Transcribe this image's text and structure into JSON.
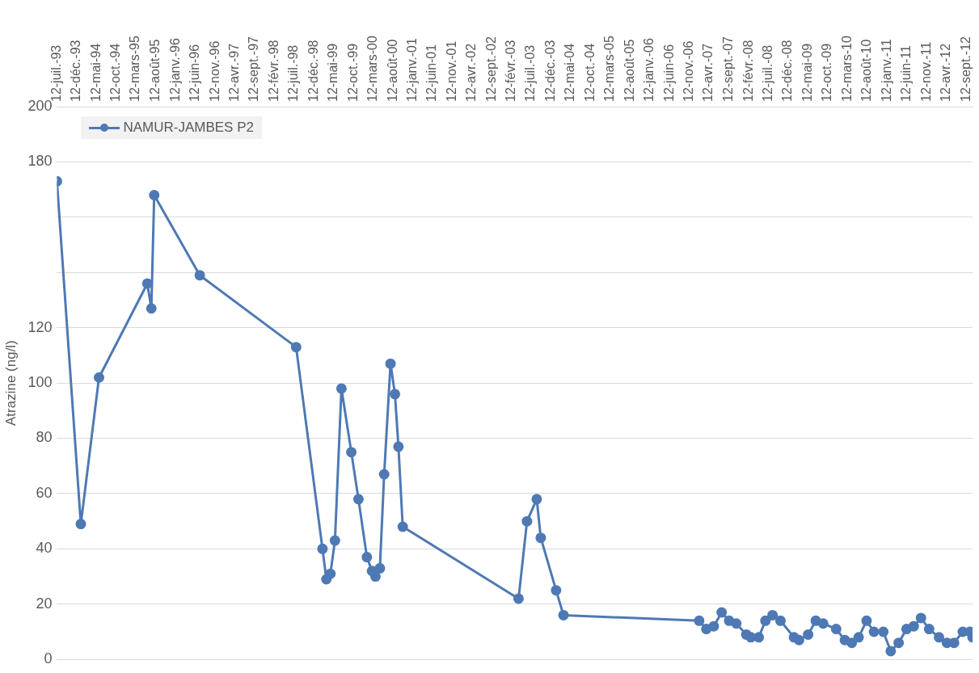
{
  "chart_data": {
    "type": "line",
    "ylabel": "Atrazine (ng/l)",
    "x": [
      "1993-07-12",
      "1994-01-12",
      "1994-06-01",
      "1995-06-08",
      "1995-07-09",
      "1995-07-31",
      "1996-07-16",
      "1998-07-28",
      "1999-02-16",
      "1999-03-18",
      "1999-04-18",
      "1999-05-23",
      "1999-07-12",
      "1999-09-26",
      "1999-11-20",
      "2000-01-24",
      "2000-03-03",
      "2000-03-30",
      "2000-05-03",
      "2000-06-05",
      "2000-07-24",
      "2000-08-27",
      "2000-09-23",
      "2000-10-26",
      "2003-04-06",
      "2003-06-10",
      "2003-08-24",
      "2003-09-24",
      "2004-01-20",
      "2004-03-17",
      "2007-01-26",
      "2007-03-22",
      "2007-05-18",
      "2007-07-18",
      "2007-09-14",
      "2007-11-08",
      "2008-01-24",
      "2008-02-28",
      "2008-04-29",
      "2008-06-19",
      "2008-08-13",
      "2008-10-13",
      "2009-01-25",
      "2009-03-05",
      "2009-05-14",
      "2009-07-12",
      "2009-09-07",
      "2009-12-16",
      "2010-02-21",
      "2010-04-15",
      "2010-06-07",
      "2010-08-07",
      "2010-10-03",
      "2010-12-14",
      "2011-02-09",
      "2011-04-11",
      "2011-06-11",
      "2011-08-05",
      "2011-09-30",
      "2011-12-02",
      "2012-02-16",
      "2012-04-17",
      "2012-06-11",
      "2012-08-17",
      "2012-10-11",
      "2012-10-31"
    ],
    "series": [
      {
        "name": "NAMUR-JAMBES P2",
        "color": "#4e79b4",
        "values": [
          173,
          49,
          102,
          136,
          127,
          168,
          139,
          113,
          40,
          29,
          31,
          43,
          98,
          75,
          58,
          37,
          32,
          30,
          33,
          67,
          107,
          96,
          77,
          48,
          22,
          50,
          58,
          44,
          25,
          16,
          14,
          11,
          12,
          17,
          14,
          13,
          9,
          8,
          8,
          14,
          16,
          14,
          8,
          7,
          9,
          14,
          13,
          11,
          7,
          6,
          8,
          14,
          10,
          10,
          3,
          6,
          11,
          12,
          15,
          11,
          8,
          6,
          6,
          10,
          10,
          8
        ]
      }
    ],
    "xlim": [
      "1993-07-12",
      "2012-10-31"
    ],
    "xticks": [
      {
        "value": "1993-07-12",
        "label": "12-juil.-93"
      },
      {
        "value": "1993-12-12",
        "label": "12-déc.-93"
      },
      {
        "value": "1994-05-12",
        "label": "12-mai-94"
      },
      {
        "value": "1994-10-12",
        "label": "12-oct.-94"
      },
      {
        "value": "1995-03-12",
        "label": "12-mars-95"
      },
      {
        "value": "1995-08-12",
        "label": "12-août-95"
      },
      {
        "value": "1996-01-12",
        "label": "12-janv.-96"
      },
      {
        "value": "1996-06-12",
        "label": "12-juin-96"
      },
      {
        "value": "1996-11-12",
        "label": "12-nov.-96"
      },
      {
        "value": "1997-04-12",
        "label": "12-avr.-97"
      },
      {
        "value": "1997-09-12",
        "label": "12-sept.-97"
      },
      {
        "value": "1998-02-12",
        "label": "12-févr.-98"
      },
      {
        "value": "1998-07-12",
        "label": "12-juil.-98"
      },
      {
        "value": "1998-12-12",
        "label": "12-déc.-98"
      },
      {
        "value": "1999-05-12",
        "label": "12-mai-99"
      },
      {
        "value": "1999-10-12",
        "label": "12-oct.-99"
      },
      {
        "value": "2000-03-12",
        "label": "12-mars-00"
      },
      {
        "value": "2000-08-12",
        "label": "12-août-00"
      },
      {
        "value": "2001-01-12",
        "label": "12-janv.-01"
      },
      {
        "value": "2001-06-12",
        "label": "12-juin-01"
      },
      {
        "value": "2001-11-12",
        "label": "12-nov.-01"
      },
      {
        "value": "2002-04-12",
        "label": "12-avr.-02"
      },
      {
        "value": "2002-09-12",
        "label": "12-sept.-02"
      },
      {
        "value": "2003-02-12",
        "label": "12-févr.-03"
      },
      {
        "value": "2003-07-12",
        "label": "12-juil.-03"
      },
      {
        "value": "2003-12-12",
        "label": "12-déc.-03"
      },
      {
        "value": "2004-05-12",
        "label": "12-mai-04"
      },
      {
        "value": "2004-10-12",
        "label": "12-oct.-04"
      },
      {
        "value": "2005-03-12",
        "label": "12-mars-05"
      },
      {
        "value": "2005-08-12",
        "label": "12-août-05"
      },
      {
        "value": "2006-01-12",
        "label": "12-janv.-06"
      },
      {
        "value": "2006-06-12",
        "label": "12-juin-06"
      },
      {
        "value": "2006-11-12",
        "label": "12-nov.-06"
      },
      {
        "value": "2007-04-12",
        "label": "12-avr.-07"
      },
      {
        "value": "2007-09-12",
        "label": "12-sept.-07"
      },
      {
        "value": "2008-02-12",
        "label": "12-févr.-08"
      },
      {
        "value": "2008-07-12",
        "label": "12-juil.-08"
      },
      {
        "value": "2008-12-12",
        "label": "12-déc.-08"
      },
      {
        "value": "2009-05-12",
        "label": "12-mai-09"
      },
      {
        "value": "2009-10-12",
        "label": "12-oct.-09"
      },
      {
        "value": "2010-03-12",
        "label": "12-mars-10"
      },
      {
        "value": "2010-08-12",
        "label": "12-août-10"
      },
      {
        "value": "2011-01-12",
        "label": "12-janv.-11"
      },
      {
        "value": "2011-06-12",
        "label": "12-juin-11"
      },
      {
        "value": "2011-11-12",
        "label": "12-nov.-11"
      },
      {
        "value": "2012-04-12",
        "label": "12-avr.-12"
      },
      {
        "value": "2012-09-12",
        "label": "12-sept.-12"
      }
    ],
    "ylim": [
      0,
      200
    ],
    "yticks": [
      0,
      20,
      40,
      60,
      80,
      100,
      120,
      {
        "value": 140,
        "label": null
      },
      {
        "value": 160,
        "label": null
      },
      180,
      200
    ],
    "grid": "y",
    "legend": "top left",
    "marker": "circle",
    "line_style": "solid"
  }
}
